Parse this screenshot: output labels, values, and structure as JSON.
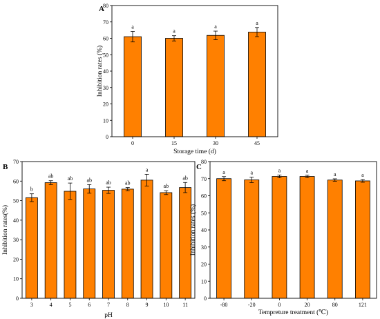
{
  "colors": {
    "bar": "#FF8000",
    "bar_edge": "#000000",
    "axis": "#000000"
  },
  "chart_data": [
    {
      "type": "bar",
      "panel": "A",
      "categories": [
        "0",
        "15",
        "30",
        "45"
      ],
      "values": [
        61,
        60,
        61.8,
        63.8
      ],
      "errors": [
        3.2,
        1.6,
        2.6,
        2.8
      ],
      "sig_letters": [
        "a",
        "a",
        "a",
        "a"
      ],
      "xlabel": "Storage time (d)",
      "ylabel": "Inhibition rates (%)",
      "ylim": [
        0,
        80
      ],
      "yticks": [
        0,
        10,
        20,
        30,
        40,
        50,
        60,
        70,
        80
      ]
    },
    {
      "type": "bar",
      "panel": "B",
      "categories": [
        "3",
        "4",
        "5",
        "6",
        "7",
        "8",
        "9",
        "10",
        "11"
      ],
      "values": [
        51.5,
        59.2,
        54.8,
        56,
        55.3,
        55.9,
        60.5,
        54.1,
        56.7
      ],
      "errors": [
        2.0,
        1.0,
        4.2,
        2.2,
        1.6,
        0.8,
        3.0,
        1.0,
        2.6
      ],
      "sig_letters": [
        "b",
        "ab",
        "ab",
        "ab",
        "ab",
        "ab",
        "a",
        "ab",
        "ab"
      ],
      "xlabel": "pH",
      "ylabel": "Inhibition rates(%)",
      "ylim": [
        0,
        70
      ],
      "yticks": [
        0,
        10,
        20,
        30,
        40,
        50,
        60,
        70
      ]
    },
    {
      "type": "bar",
      "panel": "C",
      "categories": [
        "-80",
        "-20",
        "0",
        "20",
        "80",
        "121"
      ],
      "values": [
        70,
        69.3,
        71.3,
        71.3,
        69.2,
        68.7
      ],
      "errors": [
        1.2,
        1.6,
        0.8,
        0.7,
        0.7,
        0.8
      ],
      "sig_letters": [
        "a",
        "a",
        "a",
        "a",
        "a",
        "a"
      ],
      "xlabel": "Tempreture treatment (℃)",
      "ylabel": "Inhibition rates (%)",
      "ylim": [
        0,
        80
      ],
      "yticks": [
        0,
        10,
        20,
        30,
        40,
        50,
        60,
        70,
        80
      ]
    }
  ]
}
